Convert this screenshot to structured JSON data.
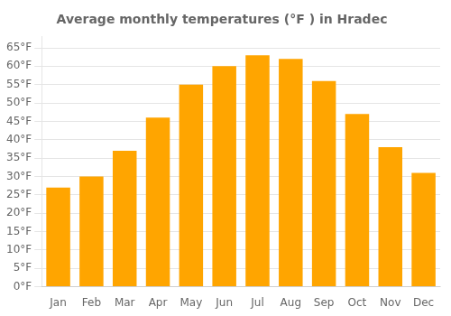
{
  "chart_data": {
    "type": "bar",
    "title": "Average monthly temperatures (°F ) in Hradec",
    "categories": [
      "Jan",
      "Feb",
      "Mar",
      "Apr",
      "May",
      "Jun",
      "Jul",
      "Aug",
      "Sep",
      "Oct",
      "Nov",
      "Dec"
    ],
    "values": [
      27,
      30,
      37,
      46,
      55,
      60,
      63,
      62,
      56,
      47,
      38,
      31
    ],
    "color": "#FFA500",
    "ylim": [
      0,
      68
    ],
    "yticks": [
      {
        "value": 0,
        "label": "0°F"
      },
      {
        "value": 5,
        "label": "5°F"
      },
      {
        "value": 10,
        "label": "10°F"
      },
      {
        "value": 15,
        "label": "15°F"
      },
      {
        "value": 20,
        "label": "20°F"
      },
      {
        "value": 25,
        "label": "25°F"
      },
      {
        "value": 30,
        "label": "30°F"
      },
      {
        "value": 35,
        "label": "35°F"
      },
      {
        "value": 40,
        "label": "40°F"
      },
      {
        "value": 45,
        "label": "45°F"
      },
      {
        "value": 50,
        "label": "50°F"
      },
      {
        "value": 55,
        "label": "55°F"
      },
      {
        "value": 60,
        "label": "60°F"
      },
      {
        "value": 65,
        "label": "65°F"
      }
    ],
    "grid": true
  }
}
